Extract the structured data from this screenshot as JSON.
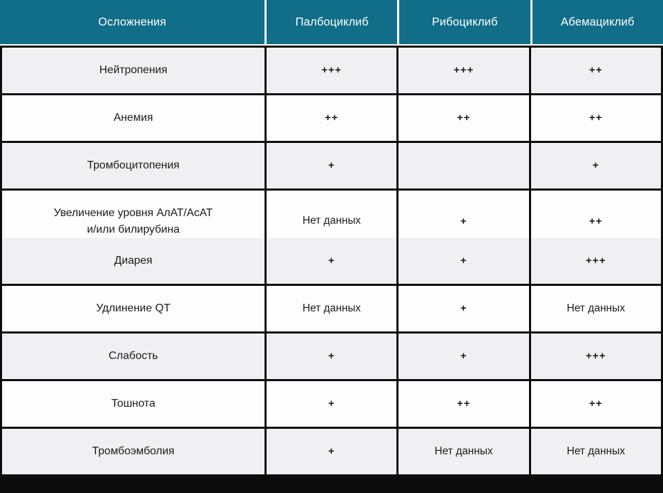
{
  "chart_data": {
    "type": "table",
    "columns": [
      "Осложнения",
      "Палбоциклиб",
      "Рибоциклиб",
      "Абемациклиб"
    ],
    "rows": [
      {
        "label": "Нейтропения",
        "values": [
          "+++",
          "+++",
          "++"
        ]
      },
      {
        "label": "Анемия",
        "values": [
          "++",
          "++",
          "++"
        ]
      },
      {
        "label": "Тромбоцитопения",
        "values": [
          "+",
          "",
          "+"
        ]
      },
      {
        "label": "Увеличение уровня АлАТ/АсАТ\nи/или билирубина",
        "values": [
          "Нет данных",
          "+",
          "++"
        ]
      },
      {
        "label": "Диарея",
        "values": [
          "+",
          "+",
          "+++"
        ]
      },
      {
        "label": "Удлинение QT",
        "values": [
          "Нет данных",
          "+",
          "Нет данных"
        ]
      },
      {
        "label": "Слабость",
        "values": [
          "+",
          "+",
          "+++"
        ]
      },
      {
        "label": "Тошнота",
        "values": [
          "+",
          "++",
          "++"
        ]
      },
      {
        "label": "Тромбоэмболия",
        "values": [
          "+",
          "Нет данных",
          "Нет данных"
        ]
      }
    ]
  },
  "colors": {
    "header_bg": "#116e89",
    "header_text": "#ffffff",
    "row_alt_bg": "#f0eff1",
    "row_bg": "#fdfdfd",
    "grid_border": "#0c0c0c",
    "body_text": "#1b1b1b"
  }
}
